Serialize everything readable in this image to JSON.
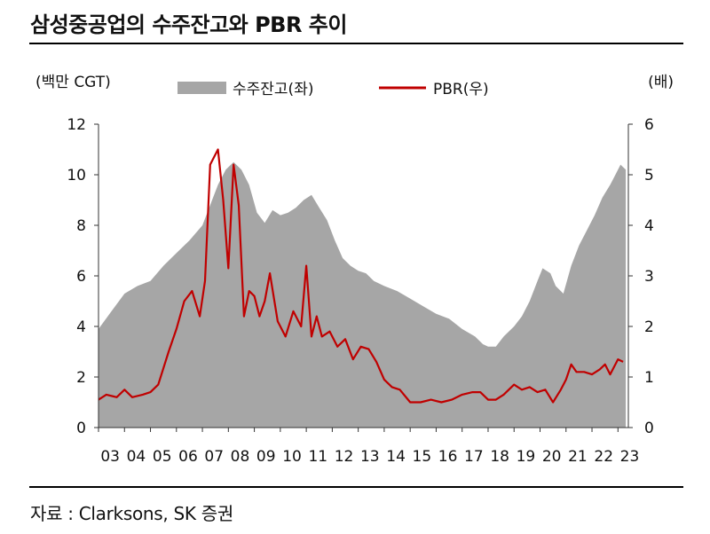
{
  "title": "삼성중공업의 수주잔고와 PBR 추이",
  "source": "자료 : Clarksons, SK 증권",
  "chart_data": {
    "type": "area",
    "left_unit": "(백만 CGT)",
    "right_unit": "(배)",
    "categories": [
      "03",
      "04",
      "05",
      "06",
      "07",
      "08",
      "09",
      "10",
      "11",
      "12",
      "13",
      "14",
      "15",
      "16",
      "17",
      "18",
      "19",
      "20",
      "21",
      "22",
      "23"
    ],
    "y_left": {
      "min": 0,
      "max": 12,
      "ticks": [
        0,
        2,
        4,
        6,
        8,
        10,
        12
      ]
    },
    "y_right": {
      "min": 0,
      "max": 6,
      "ticks": [
        0,
        1,
        2,
        3,
        4,
        5,
        6
      ]
    },
    "legend": {
      "position": "top",
      "entries": [
        "수주잔고(좌)",
        "PBR(우)"
      ]
    },
    "colors": {
      "area": "#a6a6a6",
      "line": "#c00000"
    },
    "series": [
      {
        "name": "수주잔고(좌)",
        "axis": "left",
        "type": "area",
        "x": [
          2003.0,
          2003.5,
          2004.0,
          2004.5,
          2005.0,
          2005.5,
          2006.0,
          2006.5,
          2007.0,
          2007.3,
          2007.6,
          2007.9,
          2008.2,
          2008.5,
          2008.8,
          2009.1,
          2009.4,
          2009.7,
          2010.0,
          2010.3,
          2010.6,
          2010.9,
          2011.2,
          2011.5,
          2011.8,
          2012.1,
          2012.4,
          2012.7,
          2013.0,
          2013.3,
          2013.6,
          2014.0,
          2014.5,
          2015.0,
          2015.5,
          2016.0,
          2016.5,
          2017.0,
          2017.5,
          2017.8,
          2018.0,
          2018.3,
          2018.6,
          2019.0,
          2019.3,
          2019.6,
          2019.9,
          2020.1,
          2020.4,
          2020.6,
          2020.9,
          2021.2,
          2021.5,
          2021.8,
          2022.1,
          2022.4,
          2022.7,
          2022.9,
          2023.1,
          2023.3
        ],
        "values": [
          3.9,
          4.6,
          5.3,
          5.6,
          5.8,
          6.4,
          6.9,
          7.4,
          8.0,
          8.8,
          9.6,
          10.2,
          10.5,
          10.2,
          9.6,
          8.5,
          8.1,
          8.6,
          8.4,
          8.5,
          8.7,
          9.0,
          9.2,
          8.7,
          8.2,
          7.4,
          6.7,
          6.4,
          6.2,
          6.1,
          5.8,
          5.6,
          5.4,
          5.1,
          4.8,
          4.5,
          4.3,
          3.9,
          3.6,
          3.3,
          3.2,
          3.2,
          3.6,
          4.0,
          4.4,
          5.0,
          5.8,
          6.3,
          6.1,
          5.6,
          5.3,
          6.4,
          7.2,
          7.8,
          8.4,
          9.1,
          9.6,
          10.0,
          10.4,
          10.2
        ]
      },
      {
        "name": "PBR(우)",
        "axis": "right",
        "type": "line",
        "x": [
          2003.0,
          2003.3,
          2003.7,
          2004.0,
          2004.3,
          2004.7,
          2005.0,
          2005.3,
          2005.7,
          2006.0,
          2006.3,
          2006.6,
          2006.9,
          2007.1,
          2007.3,
          2007.6,
          2007.8,
          2008.0,
          2008.2,
          2008.4,
          2008.6,
          2008.8,
          2009.0,
          2009.2,
          2009.4,
          2009.6,
          2009.9,
          2010.2,
          2010.5,
          2010.8,
          2011.0,
          2011.2,
          2011.4,
          2011.6,
          2011.9,
          2012.2,
          2012.5,
          2012.8,
          2013.1,
          2013.4,
          2013.7,
          2014.0,
          2014.3,
          2014.6,
          2015.0,
          2015.4,
          2015.8,
          2016.2,
          2016.6,
          2017.0,
          2017.4,
          2017.7,
          2018.0,
          2018.3,
          2018.6,
          2019.0,
          2019.3,
          2019.6,
          2019.9,
          2020.2,
          2020.5,
          2020.8,
          2021.0,
          2021.2,
          2021.4,
          2021.7,
          2022.0,
          2022.3,
          2022.5,
          2022.7,
          2023.0,
          2023.2
        ],
        "values": [
          0.55,
          0.65,
          0.6,
          0.75,
          0.6,
          0.65,
          0.7,
          0.85,
          1.5,
          1.95,
          2.5,
          2.7,
          2.2,
          2.9,
          5.2,
          5.5,
          4.5,
          3.15,
          5.2,
          4.4,
          2.2,
          2.7,
          2.6,
          2.2,
          2.5,
          3.05,
          2.1,
          1.8,
          2.3,
          2.0,
          3.2,
          1.8,
          2.2,
          1.8,
          1.9,
          1.6,
          1.75,
          1.35,
          1.6,
          1.55,
          1.3,
          0.95,
          0.8,
          0.75,
          0.5,
          0.5,
          0.55,
          0.5,
          0.55,
          0.65,
          0.7,
          0.7,
          0.55,
          0.55,
          0.65,
          0.85,
          0.75,
          0.8,
          0.7,
          0.75,
          0.5,
          0.75,
          0.95,
          1.25,
          1.1,
          1.1,
          1.05,
          1.15,
          1.25,
          1.05,
          1.35,
          1.3
        ]
      }
    ]
  }
}
